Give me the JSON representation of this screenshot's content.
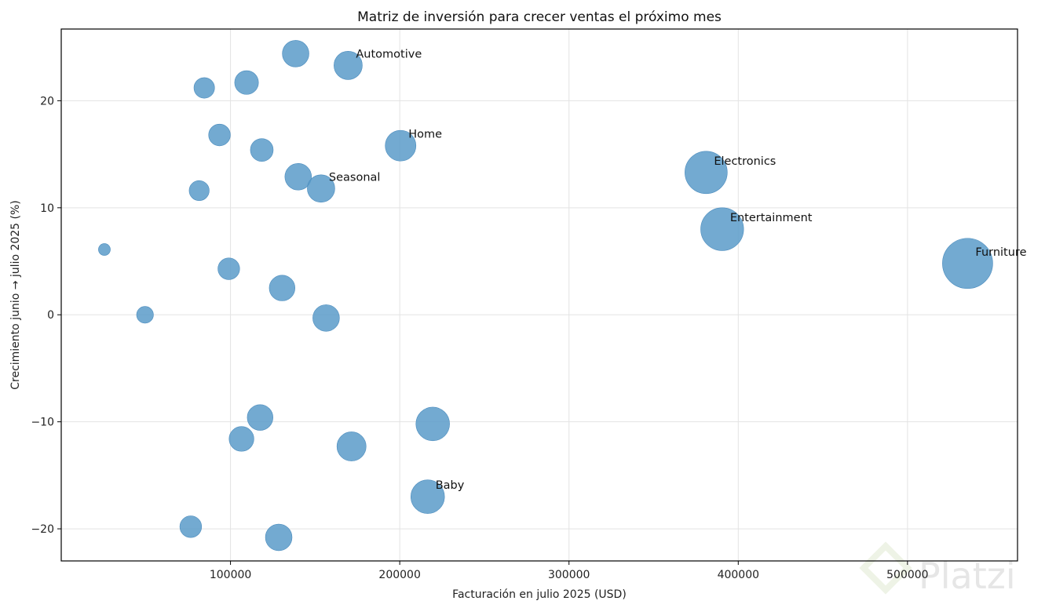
{
  "chart_data": {
    "type": "scatter",
    "title": "Matriz de inversión para crecer ventas el próximo mes",
    "xlabel": "Facturación en julio 2025 (USD)",
    "ylabel": "Crecimiento junio → julio 2025 (%)",
    "xlim": [
      0,
      565000
    ],
    "ylim": [
      -23,
      26.7
    ],
    "xticks": [
      100000,
      200000,
      300000,
      400000,
      500000
    ],
    "yticks": [
      -20,
      -10,
      0,
      10,
      20
    ],
    "ytick_labels": [
      "−20",
      "−10",
      "0",
      "10",
      "20"
    ],
    "grid": true,
    "point_color": "#5b9bc9",
    "points": [
      {
        "x": 138500,
        "y": 24.4,
        "size": 150000,
        "label": ""
      },
      {
        "x": 169500,
        "y": 23.3,
        "size": 170000,
        "label": "Automotive"
      },
      {
        "x": 109500,
        "y": 21.7,
        "size": 120000,
        "label": ""
      },
      {
        "x": 84500,
        "y": 21.2,
        "size": 90000,
        "label": ""
      },
      {
        "x": 93500,
        "y": 16.8,
        "size": 100000,
        "label": ""
      },
      {
        "x": 118500,
        "y": 15.4,
        "size": 110000,
        "label": ""
      },
      {
        "x": 200500,
        "y": 15.8,
        "size": 200000,
        "label": "Home"
      },
      {
        "x": 140000,
        "y": 12.9,
        "size": 150000,
        "label": ""
      },
      {
        "x": 153500,
        "y": 11.8,
        "size": 160000,
        "label": "Seasonal"
      },
      {
        "x": 81500,
        "y": 11.6,
        "size": 85000,
        "label": ""
      },
      {
        "x": 381000,
        "y": 13.3,
        "size": 380000,
        "label": "Electronics"
      },
      {
        "x": 390500,
        "y": 8.0,
        "size": 390000,
        "label": "Entertainment"
      },
      {
        "x": 25500,
        "y": 6.1,
        "size": 30000,
        "label": ""
      },
      {
        "x": 99000,
        "y": 4.3,
        "size": 100000,
        "label": ""
      },
      {
        "x": 130500,
        "y": 2.5,
        "size": 140000,
        "label": ""
      },
      {
        "x": 535500,
        "y": 4.8,
        "size": 535000,
        "label": "Furniture"
      },
      {
        "x": 49500,
        "y": 0.0,
        "size": 60000,
        "label": ""
      },
      {
        "x": 156500,
        "y": -0.3,
        "size": 150000,
        "label": ""
      },
      {
        "x": 117500,
        "y": -9.6,
        "size": 140000,
        "label": ""
      },
      {
        "x": 219500,
        "y": -10.2,
        "size": 240000,
        "label": ""
      },
      {
        "x": 106500,
        "y": -11.6,
        "size": 130000,
        "label": ""
      },
      {
        "x": 171500,
        "y": -12.3,
        "size": 180000,
        "label": ""
      },
      {
        "x": 216500,
        "y": -17.0,
        "size": 240000,
        "label": "Baby"
      },
      {
        "x": 76500,
        "y": -19.8,
        "size": 100000,
        "label": ""
      },
      {
        "x": 128500,
        "y": -20.8,
        "size": 150000,
        "label": ""
      }
    ]
  },
  "watermark": {
    "text": "Platzi"
  }
}
